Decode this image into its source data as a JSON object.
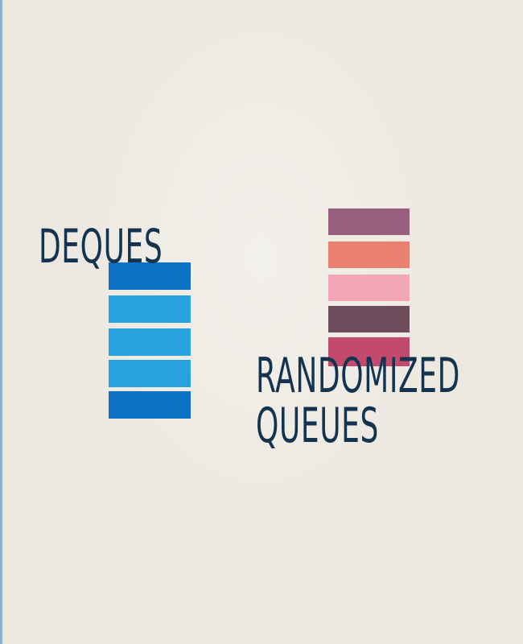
{
  "deques": {
    "title": "DEQUES",
    "bar_colors": [
      "#0d72c4",
      "#28a3df",
      "#28a3df",
      "#28a3df",
      "#0d72c4"
    ]
  },
  "randomized_queues": {
    "title_line1": "RANDOMIZED",
    "title_line2": "QUEUES",
    "bar_colors": [
      "#98607e",
      "#ec8070",
      "#f2a6b8",
      "#6e4c5c",
      "#c24a6e"
    ]
  },
  "background_color": "#ece8e0",
  "text_color": "#13334f"
}
